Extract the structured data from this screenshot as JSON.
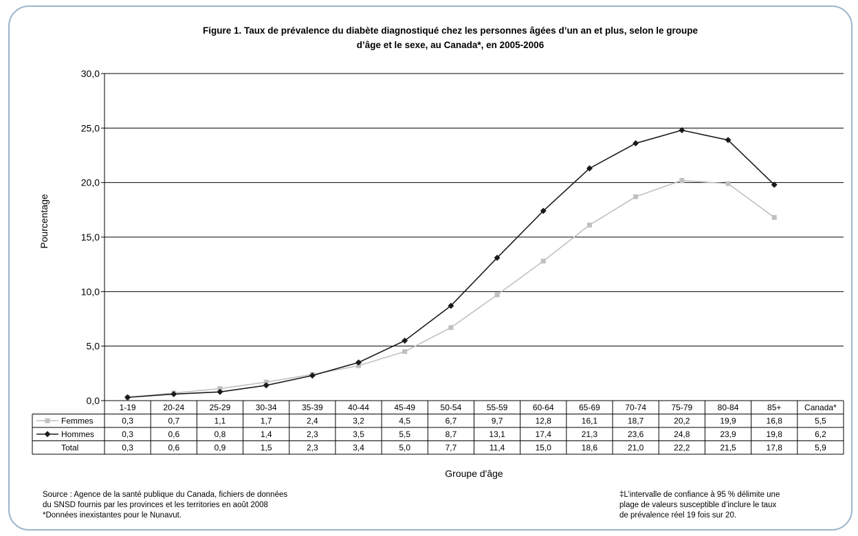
{
  "title_line1": "Figure 1.  Taux de prévalence du diabète diagnostiqué chez les personnes âgées d’un an et plus, selon le groupe",
  "title_line2": "d’âge et le sexe, au Canada*, en 2005-2006",
  "source_lines": [
    "Source : Agence de la santé publique du Canada, fichiers de données",
    "du SNSD fournis par les provinces et les territories en août 2008",
    "*Données inexistantes pour le Nunavut."
  ],
  "note_lines": [
    "‡L’intervalle de confiance à 95 % délimite une",
    "plage de valeurs susceptible d’inclure le taux",
    "de prévalence réel 19 fois sur 20."
  ],
  "chart_data": {
    "type": "line",
    "xlabel": "Groupe d'âge",
    "ylabel": "Pourcentage",
    "ylim": [
      0,
      30
    ],
    "yticks": [
      "0,0",
      "5,0",
      "10,0",
      "15,0",
      "20,0",
      "25,0",
      "30,0"
    ],
    "grid": true,
    "categories": [
      "1-19",
      "20-24",
      "25-29",
      "30-34",
      "35-39",
      "40-44",
      "45-49",
      "50-54",
      "55-59",
      "60-64",
      "65-69",
      "70-74",
      "75-79",
      "80-84",
      "85+",
      "Canada*"
    ],
    "series": [
      {
        "name": "Femmes",
        "color": "#c0c0c0",
        "marker": "square",
        "values": [
          0.3,
          0.7,
          1.1,
          1.7,
          2.4,
          3.2,
          4.5,
          6.7,
          9.7,
          12.8,
          16.1,
          18.7,
          20.2,
          19.9,
          16.8,
          5.5
        ],
        "labels": [
          "0,3",
          "0,7",
          "1,1",
          "1,7",
          "2,4",
          "3,2",
          "4,5",
          "6,7",
          "9,7",
          "12,8",
          "16,1",
          "18,7",
          "20,2",
          "19,9",
          "16,8",
          "5,5"
        ]
      },
      {
        "name": "Hommes",
        "color": "#1a1a1a",
        "marker": "diamond",
        "values": [
          0.3,
          0.6,
          0.8,
          1.4,
          2.3,
          3.5,
          5.5,
          8.7,
          13.1,
          17.4,
          21.3,
          23.6,
          24.8,
          23.9,
          19.8,
          6.2
        ],
        "labels": [
          "0,3",
          "0,6",
          "0,8",
          "1,4",
          "2,3",
          "3,5",
          "5,5",
          "8,7",
          "13,1",
          "17,4",
          "21,3",
          "23,6",
          "24,8",
          "23,9",
          "19,8",
          "6,2"
        ]
      },
      {
        "name": "Total",
        "color": null,
        "marker": "none",
        "values": [
          0.3,
          0.6,
          0.9,
          1.5,
          2.3,
          3.4,
          5.0,
          7.7,
          11.4,
          15.0,
          18.6,
          21.0,
          22.2,
          21.5,
          17.8,
          5.9
        ],
        "labels": [
          "0,3",
          "0,6",
          "0,9",
          "1,5",
          "2,3",
          "3,4",
          "5,0",
          "7,7",
          "11,4",
          "15,0",
          "18,6",
          "21,0",
          "22,2",
          "21,5",
          "17,8",
          "5,9"
        ]
      }
    ],
    "plotted_points": 15
  }
}
